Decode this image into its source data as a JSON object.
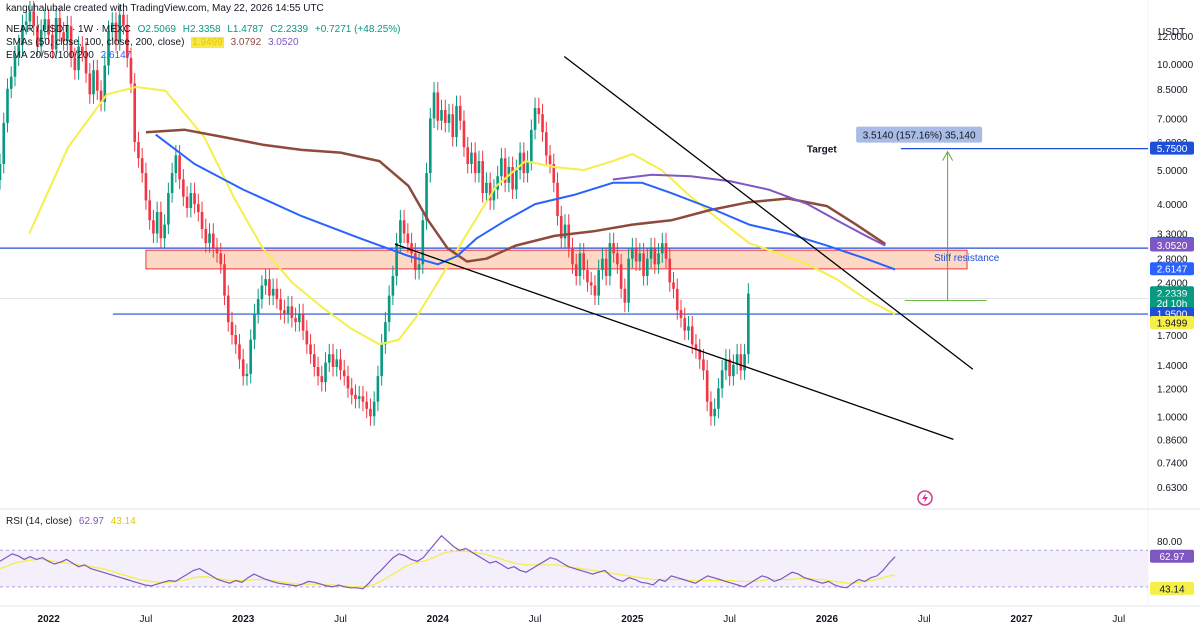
{
  "header": {
    "created_by": "kanguhalubale created with TradingView.com, May 22, 2026 14:55 UTC",
    "symbol": "NEAR / USDT · 1W · MEXC",
    "ohlc": {
      "o": "O2.5069",
      "h": "H2.3358",
      "l": "L1.4787",
      "c": "C2.2339",
      "chg": "+0.7271 (+48.25%)"
    },
    "sma_label": "SMAs (50, close, 100, close, 200, close)",
    "sma_values": [
      "1.9499",
      "3.0792",
      "3.0520"
    ],
    "ema_label": "EMA 20/50/100/200",
    "ema_value": "2.6147",
    "rsi_label": "RSI (14, close)",
    "rsi_values": [
      "62.97",
      "43.14"
    ]
  },
  "colors": {
    "up": "#089981",
    "down": "#f23645",
    "sma50": "#f5ef4a",
    "sma100": "#8e4a3c",
    "sma200": "#7e57c2",
    "ema": "#2962ff",
    "level": "#1e4fd8",
    "zone_fill": "#fbd9c4",
    "zone_border": "#f23645",
    "target_box": "#a9bce6",
    "rsi": "#7e57c2",
    "rsi_ma": "#f5ef4a",
    "arrow": "#5aae2e"
  },
  "chart_data": {
    "type": "candlestick",
    "y_axis_label": "USDT",
    "y_scale": "log",
    "ylim": [
      0.56,
      13.5
    ],
    "price_ticks": [
      "12.0000",
      "10.0000",
      "8.5000",
      "7.0000",
      "6.0000",
      "5.0000",
      "4.0000",
      "3.3000",
      "2.8000",
      "2.4000",
      "2.0000",
      "1.7000",
      "1.4000",
      "1.2000",
      "1.0000",
      "0.8600",
      "0.7400",
      "0.6300"
    ],
    "x_labels": [
      "2022",
      "Jul",
      "2023",
      "Jul",
      "2024",
      "Jul",
      "2025",
      "Jul",
      "2026",
      "Jul",
      "2027",
      "Jul"
    ],
    "x_label_dates": [
      2022.0,
      2022.5,
      2023.0,
      2023.5,
      2024.0,
      2024.5,
      2025.0,
      2025.5,
      2026.0,
      2026.5,
      2027.0,
      2027.5
    ],
    "x_range": [
      2021.75,
      2027.65
    ],
    "candle_start": 2021.75,
    "candle_step": 0.01923,
    "closes": [
      5.2,
      6.8,
      8.5,
      9.2,
      10.5,
      11.3,
      12.9,
      13.2,
      14.1,
      12.8,
      11.2,
      12.5,
      13.4,
      12.1,
      11.0,
      13.5,
      12.3,
      11.6,
      12.8,
      10.4,
      9.6,
      11.2,
      10.8,
      9.4,
      8.2,
      9.6,
      8.4,
      7.8,
      9.9,
      12.4,
      13.1,
      11.6,
      13.8,
      12.9,
      10.4,
      8.8,
      6.0,
      5.4,
      4.9,
      4.1,
      3.6,
      3.3,
      3.8,
      3.2,
      3.5,
      4.3,
      4.9,
      5.5,
      4.7,
      4.2,
      3.9,
      4.3,
      4.0,
      3.8,
      3.4,
      3.1,
      3.3,
      3.0,
      2.9,
      2.7,
      2.2,
      1.85,
      1.7,
      1.6,
      1.45,
      1.3,
      1.32,
      1.65,
      1.95,
      2.15,
      2.35,
      2.45,
      2.2,
      2.3,
      2.15,
      2.0,
      1.95,
      2.05,
      1.9,
      1.85,
      1.95,
      1.75,
      1.6,
      1.5,
      1.38,
      1.3,
      1.25,
      1.42,
      1.5,
      1.38,
      1.45,
      1.35,
      1.3,
      1.2,
      1.15,
      1.12,
      1.14,
      1.1,
      1.05,
      1.0,
      1.1,
      1.3,
      1.6,
      1.85,
      2.2,
      2.5,
      3.1,
      3.6,
      3.3,
      3.1,
      2.9,
      2.6,
      2.7,
      3.6,
      4.9,
      7.0,
      8.3,
      6.9,
      7.4,
      6.8,
      7.2,
      6.2,
      7.6,
      6.9,
      5.8,
      5.2,
      5.6,
      4.9,
      5.3,
      4.3,
      4.6,
      4.1,
      4.4,
      4.8,
      5.4,
      4.6,
      5.1,
      4.4,
      5.0,
      5.6,
      4.9,
      5.3,
      6.5,
      7.5,
      7.2,
      6.4,
      5.5,
      5.2,
      4.6,
      3.7,
      3.2,
      3.5,
      3.0,
      2.7,
      2.5,
      2.9,
      2.6,
      2.4,
      2.35,
      2.2,
      2.6,
      2.8,
      2.5,
      3.1,
      2.9,
      2.7,
      2.3,
      2.1,
      2.8,
      3.0,
      2.75,
      2.9,
      2.5,
      2.8,
      3.0,
      2.7,
      2.9,
      3.1,
      2.8,
      2.4,
      2.3,
      2.0,
      1.9,
      1.75,
      1.8,
      1.6,
      1.55,
      1.45,
      1.35,
      1.1,
      1.0,
      1.05,
      1.2,
      1.35,
      1.45,
      1.3,
      1.4,
      1.5,
      1.35,
      1.5,
      2.23
    ],
    "series": [
      {
        "name": "SMA 50",
        "values_by_date": [
          [
            2021.9,
            3.3
          ],
          [
            2022.1,
            5.8
          ],
          [
            2022.3,
            8.2
          ],
          [
            2022.45,
            8.6
          ],
          [
            2022.6,
            8.4
          ],
          [
            2022.8,
            6.2
          ],
          [
            2022.95,
            4.2
          ],
          [
            2023.1,
            3.0
          ],
          [
            2023.25,
            2.4
          ],
          [
            2023.4,
            2.05
          ],
          [
            2023.55,
            1.78
          ],
          [
            2023.7,
            1.6
          ],
          [
            2023.8,
            1.65
          ],
          [
            2023.9,
            1.95
          ],
          [
            2024.0,
            2.4
          ],
          [
            2024.15,
            3.3
          ],
          [
            2024.3,
            4.5
          ],
          [
            2024.45,
            5.3
          ],
          [
            2024.6,
            5.1
          ],
          [
            2024.75,
            5.0
          ],
          [
            2024.9,
            5.3
          ],
          [
            2025.0,
            5.55
          ],
          [
            2025.15,
            5.0
          ],
          [
            2025.3,
            4.2
          ],
          [
            2025.45,
            3.6
          ],
          [
            2025.6,
            3.1
          ],
          [
            2025.75,
            2.9
          ],
          [
            2025.9,
            2.7
          ],
          [
            2026.05,
            2.45
          ],
          [
            2026.2,
            2.15
          ],
          [
            2026.35,
            1.95
          ]
        ]
      },
      {
        "name": "SMA 100",
        "values_by_date": [
          [
            2022.5,
            6.4
          ],
          [
            2022.7,
            6.5
          ],
          [
            2022.9,
            6.2
          ],
          [
            2023.1,
            5.9
          ],
          [
            2023.3,
            5.7
          ],
          [
            2023.5,
            5.6
          ],
          [
            2023.7,
            5.3
          ],
          [
            2023.85,
            4.5
          ],
          [
            2023.95,
            3.6
          ],
          [
            2024.05,
            3.0
          ],
          [
            2024.15,
            2.75
          ],
          [
            2024.25,
            2.8
          ],
          [
            2024.4,
            3.05
          ],
          [
            2024.6,
            3.25
          ],
          [
            2024.8,
            3.35
          ],
          [
            2025.0,
            3.5
          ],
          [
            2025.2,
            3.6
          ],
          [
            2025.4,
            3.85
          ],
          [
            2025.6,
            4.05
          ],
          [
            2025.8,
            4.15
          ],
          [
            2026.0,
            3.95
          ],
          [
            2026.15,
            3.5
          ],
          [
            2026.3,
            3.08
          ]
        ]
      },
      {
        "name": "SMA 200",
        "values_by_date": [
          [
            2024.9,
            4.7
          ],
          [
            2025.1,
            4.85
          ],
          [
            2025.3,
            4.8
          ],
          [
            2025.5,
            4.65
          ],
          [
            2025.7,
            4.4
          ],
          [
            2025.9,
            4.0
          ],
          [
            2026.05,
            3.6
          ],
          [
            2026.2,
            3.25
          ],
          [
            2026.3,
            3.05
          ]
        ]
      },
      {
        "name": "EMA",
        "values_by_date": [
          [
            2022.55,
            6.3
          ],
          [
            2022.75,
            5.2
          ],
          [
            2023.0,
            4.4
          ],
          [
            2023.3,
            3.7
          ],
          [
            2023.6,
            3.2
          ],
          [
            2023.85,
            2.85
          ],
          [
            2024.0,
            2.7
          ],
          [
            2024.1,
            2.85
          ],
          [
            2024.2,
            3.2
          ],
          [
            2024.35,
            3.6
          ],
          [
            2024.5,
            4.0
          ],
          [
            2024.7,
            4.25
          ],
          [
            2024.9,
            4.6
          ],
          [
            2025.05,
            4.6
          ],
          [
            2025.2,
            4.3
          ],
          [
            2025.4,
            3.9
          ],
          [
            2025.6,
            3.5
          ],
          [
            2025.8,
            3.3
          ],
          [
            2026.0,
            3.05
          ],
          [
            2026.2,
            2.8
          ],
          [
            2026.35,
            2.61
          ]
        ]
      }
    ],
    "horizontal_levels": [
      {
        "price": 3.0,
        "color": "#1e4fd8"
      },
      {
        "price": 1.95,
        "color": "#1e4fd8"
      },
      {
        "price": 5.75,
        "color": "#1e4fd8",
        "label": "Target"
      }
    ],
    "resistance_zone": {
      "low": 2.62,
      "high": 2.96,
      "label": "Stiff resistance"
    },
    "trendlines": [
      {
        "from": [
          2024.65,
          10.5
        ],
        "to": [
          2026.75,
          1.36
        ]
      },
      {
        "from": [
          2023.78,
          3.08
        ],
        "to": [
          2026.65,
          0.86
        ]
      }
    ],
    "measure_box": {
      "text": "3.5140 (157.16%) 35,140",
      "anchor_price": 6.3
    },
    "price_tags": [
      {
        "value": "5.7500",
        "price": 5.75,
        "bg": "#1e4fd8",
        "fg": "#ffffff"
      },
      {
        "value": "3.0792",
        "price": 3.0792,
        "bg": "#8e2b2b",
        "fg": "#ffffff"
      },
      {
        "value": "3.0660",
        "price": 3.066,
        "bg": "#4a6cf7",
        "fg": "#ffffff"
      },
      {
        "value": "3.0520",
        "price": 3.052,
        "bg": "#7e57c2",
        "fg": "#ffffff"
      },
      {
        "value": "2.6147",
        "price": 2.6147,
        "bg": "#2962ff",
        "fg": "#ffffff"
      },
      {
        "value": "2.2339",
        "price": 2.2339,
        "bg": "#089981",
        "fg": "#ffffff"
      },
      {
        "value": "2d 10h",
        "price": 2.09,
        "bg": "#089981",
        "fg": "#ffffff"
      },
      {
        "value": "1.9500",
        "price": 1.95,
        "bg": "#1e4fd8",
        "fg": "#ffffff"
      },
      {
        "value": "1.9499",
        "price": 1.84,
        "bg": "#f5ef4a",
        "fg": "#131722"
      }
    ],
    "rsi": {
      "ticks": [
        "80.00"
      ],
      "ylim": [
        20,
        90
      ],
      "overbought": 70,
      "oversold": 30,
      "values": [
        58,
        62,
        66,
        64,
        60,
        63,
        60,
        62,
        58,
        55,
        57,
        60,
        56,
        52,
        54,
        50,
        48,
        46,
        44,
        42,
        40,
        38,
        36,
        34,
        32,
        31,
        33,
        35,
        37,
        36,
        40,
        44,
        48,
        50,
        46,
        42,
        38,
        36,
        34,
        37,
        35,
        40,
        44,
        41,
        38,
        36,
        34,
        33,
        32,
        31,
        33,
        36,
        35,
        33,
        31,
        30,
        32,
        30,
        29,
        29,
        28,
        34,
        42,
        48,
        55,
        62,
        66,
        64,
        60,
        58,
        62,
        70,
        78,
        86,
        80,
        74,
        70,
        72,
        68,
        64,
        60,
        56,
        58,
        54,
        50,
        52,
        48,
        46,
        50,
        54,
        58,
        62,
        60,
        56,
        52,
        50,
        48,
        46,
        44,
        46,
        48,
        42,
        38,
        36,
        40,
        38,
        35,
        34,
        32,
        38,
        36,
        42,
        40,
        38,
        36,
        34,
        38,
        42,
        40,
        38,
        36,
        34,
        32,
        30,
        34,
        38,
        42,
        40,
        36,
        38,
        42,
        46,
        44,
        40,
        38,
        36,
        34,
        36,
        32,
        30,
        29,
        34,
        38,
        36,
        40,
        42,
        48,
        56,
        63
      ],
      "ma_values": [
        50,
        52,
        55,
        57,
        58,
        59,
        60,
        60,
        59,
        58,
        57,
        56,
        55,
        54,
        53,
        52,
        51,
        50,
        48,
        46,
        44,
        42,
        40,
        38,
        37,
        36,
        35,
        35,
        35,
        36,
        37,
        38,
        40,
        41,
        41,
        40,
        39,
        38,
        37,
        37,
        37,
        37,
        38,
        38,
        38,
        37,
        36,
        35,
        34,
        33,
        33,
        33,
        33,
        33,
        32,
        32,
        31,
        31,
        30,
        30,
        30,
        31,
        33,
        36,
        40,
        44,
        48,
        52,
        55,
        57,
        58,
        60,
        63,
        66,
        68,
        69,
        69,
        69,
        68,
        67,
        66,
        64,
        62,
        60,
        58,
        56,
        55,
        54,
        54,
        54,
        54,
        54,
        54,
        53,
        52,
        51,
        50,
        49,
        48,
        47,
        46,
        45,
        44,
        43,
        42,
        41,
        40,
        39,
        38,
        38,
        38,
        38,
        38,
        38,
        37,
        37,
        37,
        37,
        37,
        37,
        37,
        37,
        36,
        36,
        36,
        36,
        37,
        38,
        38,
        38,
        38,
        38,
        39,
        39,
        39,
        38,
        38,
        37,
        36,
        35,
        34,
        34,
        35,
        36,
        37,
        38,
        40,
        42,
        43
      ]
    }
  }
}
